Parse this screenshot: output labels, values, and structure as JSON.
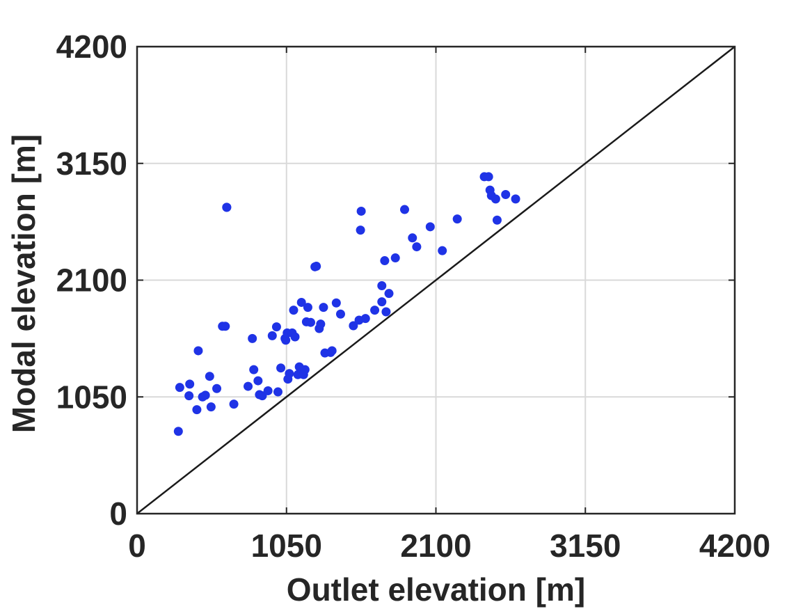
{
  "chart_data": {
    "type": "scatter",
    "title": "",
    "xlabel": "Outlet elevation [m]",
    "ylabel": "Modal elevation [m]",
    "xlim": [
      0,
      4200
    ],
    "ylim": [
      0,
      4200
    ],
    "xticks": [
      "0",
      "1050",
      "2100",
      "3150",
      "4200"
    ],
    "yticks": [
      "0",
      "1050",
      "2100",
      "3150",
      "4200"
    ],
    "grid": true,
    "reference_line": {
      "x": [
        0,
        4200
      ],
      "y": [
        0,
        4200
      ]
    },
    "marker_color": "#1f33e6",
    "line_color": "#1a1a1a",
    "series": [
      {
        "points": [
          [
            290,
            740
          ],
          [
            300,
            1135
          ],
          [
            370,
            1165
          ],
          [
            365,
            1060
          ],
          [
            420,
            935
          ],
          [
            430,
            1465
          ],
          [
            460,
            1050
          ],
          [
            480,
            1065
          ],
          [
            510,
            1235
          ],
          [
            520,
            960
          ],
          [
            560,
            1125
          ],
          [
            600,
            1685
          ],
          [
            620,
            1685
          ],
          [
            630,
            2755
          ],
          [
            630,
            2755
          ],
          [
            680,
            985
          ],
          [
            780,
            1145
          ],
          [
            810,
            1575
          ],
          [
            820,
            1295
          ],
          [
            850,
            1195
          ],
          [
            860,
            1070
          ],
          [
            880,
            1060
          ],
          [
            920,
            1105
          ],
          [
            950,
            1600
          ],
          [
            980,
            1680
          ],
          [
            990,
            1095
          ],
          [
            1010,
            1310
          ],
          [
            1040,
            1575
          ],
          [
            1045,
            1560
          ],
          [
            1055,
            1625
          ],
          [
            1060,
            1210
          ],
          [
            1070,
            1260
          ],
          [
            1090,
            1625
          ],
          [
            1100,
            1830
          ],
          [
            1110,
            1590
          ],
          [
            1130,
            1250
          ],
          [
            1140,
            1320
          ],
          [
            1155,
            1900
          ],
          [
            1160,
            1270
          ],
          [
            1170,
            1250
          ],
          [
            1180,
            1295
          ],
          [
            1190,
            1725
          ],
          [
            1200,
            1855
          ],
          [
            1220,
            1720
          ],
          [
            1250,
            2220
          ],
          [
            1260,
            2225
          ],
          [
            1280,
            1665
          ],
          [
            1290,
            1705
          ],
          [
            1310,
            1855
          ],
          [
            1320,
            1445
          ],
          [
            1360,
            1450
          ],
          [
            1370,
            1465
          ],
          [
            1400,
            1895
          ],
          [
            1430,
            1795
          ],
          [
            1520,
            1690
          ],
          [
            1560,
            1740
          ],
          [
            1570,
            2550
          ],
          [
            1575,
            2720
          ],
          [
            1605,
            1755
          ],
          [
            1670,
            1830
          ],
          [
            1720,
            2050
          ],
          [
            1720,
            1905
          ],
          [
            1740,
            2275
          ],
          [
            1750,
            1815
          ],
          [
            1770,
            1980
          ],
          [
            1815,
            2300
          ],
          [
            1880,
            2735
          ],
          [
            1935,
            2480
          ],
          [
            1965,
            2400
          ],
          [
            2060,
            2580
          ],
          [
            2145,
            2365
          ],
          [
            2250,
            2650
          ],
          [
            2440,
            3030
          ],
          [
            2470,
            3030
          ],
          [
            2480,
            2910
          ],
          [
            2490,
            2860
          ],
          [
            2520,
            2830
          ],
          [
            2530,
            2640
          ],
          [
            2590,
            2870
          ],
          [
            2660,
            2830
          ]
        ]
      }
    ]
  }
}
